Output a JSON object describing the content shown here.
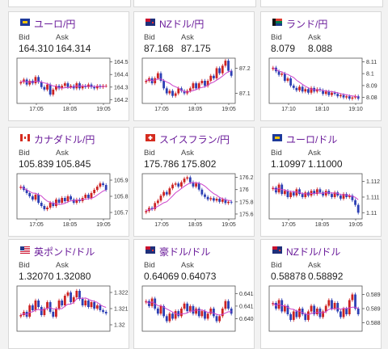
{
  "labels": {
    "bid": "Bid",
    "ask": "Ask"
  },
  "colors": {
    "up": "#cc2222",
    "down": "#2c3fb4",
    "ma": "#cc44cc",
    "title": "#6a1b9a"
  },
  "cards": [
    {
      "name": "eur-jpy",
      "title": "ユーロ/円",
      "flag": "eu-flag",
      "bid": "164.310",
      "ask": "164.314",
      "chart_data": {
        "type": "candlestick",
        "x_ticks": [
          "17:05",
          "18:05",
          "19:05"
        ],
        "y_ticks": [
          "164.5",
          "164.4",
          "164.3",
          "164.2"
        ],
        "ylim": [
          164.17,
          164.53
        ],
        "closes": [
          164.34,
          164.36,
          164.32,
          164.35,
          164.33,
          164.38,
          164.34,
          164.3,
          164.28,
          164.32,
          164.24,
          164.28,
          164.31,
          164.29,
          164.31,
          164.33,
          164.3,
          164.31,
          164.29,
          164.33,
          164.29,
          164.31,
          164.3,
          164.32,
          164.3,
          164.29,
          164.31,
          164.3,
          164.31,
          164.31
        ]
      }
    },
    {
      "name": "nzd-jpy",
      "title": "NZドル/円",
      "flag": "nz-flag",
      "bid": "87.168",
      "ask": "87.175",
      "chart_data": {
        "type": "candlestick",
        "x_ticks": [
          "17:05",
          "18:05",
          "19:05"
        ],
        "y_ticks": [
          "87.2",
          "87.1"
        ],
        "ylim": [
          87.06,
          87.24
        ],
        "closes": [
          87.15,
          87.16,
          87.14,
          87.16,
          87.18,
          87.15,
          87.12,
          87.1,
          87.11,
          87.09,
          87.1,
          87.12,
          87.11,
          87.1,
          87.11,
          87.12,
          87.14,
          87.12,
          87.14,
          87.15,
          87.13,
          87.15,
          87.17,
          87.16,
          87.2,
          87.18,
          87.21,
          87.23,
          87.19,
          87.17
        ]
      }
    },
    {
      "name": "zar-jpy",
      "title": "ランド/円",
      "flag": "za-flag",
      "bid": "8.079",
      "ask": "8.088",
      "chart_data": {
        "type": "candlestick",
        "x_ticks": [
          "17:10",
          "18:10",
          "19:10"
        ],
        "y_ticks": [
          "8.11",
          "8.1",
          "8.09",
          "8.08"
        ],
        "ylim": [
          8.075,
          8.113
        ],
        "closes": [
          8.105,
          8.102,
          8.099,
          8.1,
          8.094,
          8.096,
          8.09,
          8.088,
          8.086,
          8.089,
          8.085,
          8.087,
          8.084,
          8.088,
          8.085,
          8.087,
          8.086,
          8.083,
          8.085,
          8.082,
          8.084,
          8.083,
          8.081,
          8.082,
          8.08,
          8.081,
          8.079,
          8.08,
          8.081,
          8.079
        ]
      }
    },
    {
      "name": "cad-jpy",
      "title": "カナダドル/円",
      "flag": "ca-flag",
      "bid": "105.839",
      "ask": "105.845",
      "chart_data": {
        "type": "candlestick",
        "x_ticks": [
          "17:05",
          "18:05",
          "19:05"
        ],
        "y_ticks": [
          "105.9",
          "105.8",
          "105.7"
        ],
        "ylim": [
          105.66,
          105.94
        ],
        "closes": [
          105.86,
          105.84,
          105.82,
          105.8,
          105.78,
          105.81,
          105.76,
          105.74,
          105.72,
          105.73,
          105.76,
          105.74,
          105.78,
          105.76,
          105.79,
          105.77,
          105.8,
          105.78,
          105.76,
          105.78,
          105.77,
          105.79,
          105.81,
          105.79,
          105.82,
          105.84,
          105.86,
          105.88,
          105.87,
          105.84
        ]
      }
    },
    {
      "name": "chf-jpy",
      "title": "スイスフラン/円",
      "flag": "ch-flag",
      "bid": "175.786",
      "ask": "175.802",
      "chart_data": {
        "type": "candlestick",
        "x_ticks": [
          "17:05",
          "18:05",
          "19:05"
        ],
        "y_ticks": [
          "176.2",
          "176",
          "175.8",
          "175.6"
        ],
        "ylim": [
          175.52,
          176.26
        ],
        "closes": [
          175.65,
          175.7,
          175.68,
          175.78,
          175.82,
          175.9,
          175.96,
          175.92,
          176.02,
          176.08,
          176.1,
          176.05,
          176.12,
          176.18,
          176.2,
          176.12,
          176.05,
          176.1,
          176.0,
          175.92,
          175.88,
          175.84,
          175.86,
          175.82,
          175.85,
          175.8,
          175.84,
          175.78,
          175.8,
          175.79
        ]
      }
    },
    {
      "name": "eur-usd",
      "title": "ユーロ/ドル",
      "flag": "eu-flag",
      "bid": "1.10997",
      "ask": "1.11000",
      "chart_data": {
        "type": "candlestick",
        "x_ticks": [
          "17:05",
          "18:05",
          "19:05"
        ],
        "y_ticks": [
          "1.112",
          "1.111",
          "1.11"
        ],
        "ylim": [
          1.1096,
          1.1125
        ],
        "closes": [
          1.1116,
          1.1113,
          1.1118,
          1.1112,
          1.1114,
          1.111,
          1.1113,
          1.1111,
          1.1115,
          1.1112,
          1.111,
          1.1113,
          1.1111,
          1.1114,
          1.1112,
          1.1115,
          1.1113,
          1.1111,
          1.1114,
          1.1112,
          1.111,
          1.1113,
          1.1111,
          1.1109,
          1.1112,
          1.111,
          1.1111,
          1.1108,
          1.1105,
          1.11
        ]
      }
    },
    {
      "name": "gbp-usd",
      "title": "英ポンド/ドル",
      "flag": "us-flag",
      "bid": "1.32070",
      "ask": "1.32080",
      "chart_data": {
        "type": "candlestick",
        "x_ticks": [],
        "y_ticks": [
          "1.322",
          "1.321",
          "1.32"
        ],
        "ylim": [
          1.3196,
          1.3224
        ],
        "closes": [
          1.3206,
          1.3208,
          1.3205,
          1.3212,
          1.3209,
          1.3215,
          1.3211,
          1.3206,
          1.321,
          1.3214,
          1.3208,
          1.3205,
          1.321,
          1.3215,
          1.3212,
          1.3218,
          1.322,
          1.3214,
          1.3217,
          1.3221,
          1.3216,
          1.3212,
          1.3215,
          1.3211,
          1.3214,
          1.321,
          1.3212,
          1.3209,
          1.3208,
          1.3207
        ]
      }
    },
    {
      "name": "aud-usd",
      "title": "豪ドル/ドル",
      "flag": "au-flag",
      "bid": "0.64069",
      "ask": "0.64073",
      "chart_data": {
        "type": "candlestick",
        "x_ticks": [],
        "y_ticks": [
          "0.6415",
          "0.641",
          "0.6405"
        ],
        "ylim": [
          0.64,
          0.6418
        ],
        "closes": [
          0.6412,
          0.641,
          0.6413,
          0.6409,
          0.6407,
          0.641,
          0.6406,
          0.6404,
          0.6407,
          0.6405,
          0.6408,
          0.6406,
          0.6409,
          0.6411,
          0.6408,
          0.641,
          0.6407,
          0.6409,
          0.6406,
          0.6408,
          0.6405,
          0.6407,
          0.6409,
          0.6406,
          0.6404,
          0.6406,
          0.6409,
          0.6412,
          0.6409,
          0.6407
        ]
      }
    },
    {
      "name": "nzd-usd",
      "title": "NZドル/ドル",
      "flag": "nz-flag",
      "bid": "0.58878",
      "ask": "0.58892",
      "chart_data": {
        "type": "candlestick",
        "x_ticks": [],
        "y_ticks": [
          "0.5895",
          "0.589",
          "0.5885"
        ],
        "ylim": [
          0.5882,
          0.5898
        ],
        "closes": [
          0.5892,
          0.589,
          0.5893,
          0.5889,
          0.5891,
          0.5888,
          0.5886,
          0.5889,
          0.5887,
          0.589,
          0.5888,
          0.5886,
          0.5889,
          0.5891,
          0.5888,
          0.589,
          0.5887,
          0.5889,
          0.5891,
          0.5893,
          0.589,
          0.5892,
          0.5889,
          0.5887,
          0.589,
          0.5888,
          0.5893,
          0.5895,
          0.589,
          0.5888
        ]
      }
    }
  ]
}
